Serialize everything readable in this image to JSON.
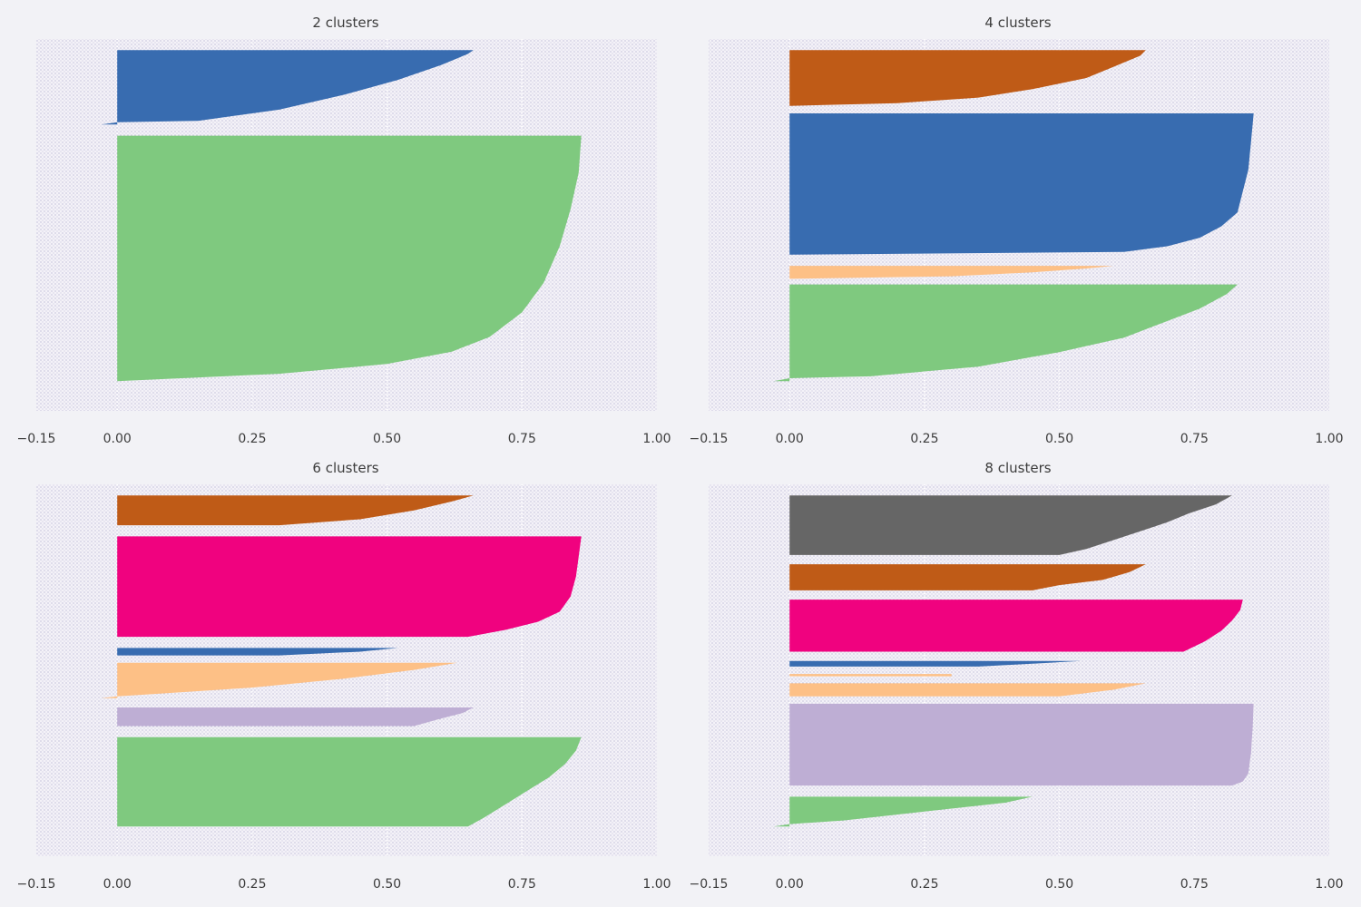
{
  "chart_data": [
    {
      "type": "silhouette",
      "title": "2 clusters",
      "xlim": [
        -0.15,
        1.0
      ],
      "xticks": [
        "−0.15",
        "0.00",
        "0.25",
        "0.50",
        "0.75",
        "1.00"
      ],
      "xtick_values": [
        -0.15,
        0.0,
        0.25,
        0.5,
        0.75,
        1.0
      ],
      "ylim": [
        0,
        100
      ],
      "clusters": [
        {
          "color": "#386cb0",
          "y0": 3,
          "y1": 23,
          "profile": [
            [
              0,
              0.66
            ],
            [
              0.05,
              0.65
            ],
            [
              0.2,
              0.6
            ],
            [
              0.4,
              0.52
            ],
            [
              0.6,
              0.42
            ],
            [
              0.8,
              0.3
            ],
            [
              0.95,
              0.15
            ],
            [
              0.97,
              0.0
            ],
            [
              1,
              -0.03
            ]
          ]
        },
        {
          "color": "#7fc97f",
          "y0": 26,
          "y1": 92,
          "profile": [
            [
              0,
              0.86
            ],
            [
              0.15,
              0.855
            ],
            [
              0.3,
              0.84
            ],
            [
              0.45,
              0.82
            ],
            [
              0.6,
              0.79
            ],
            [
              0.72,
              0.75
            ],
            [
              0.82,
              0.69
            ],
            [
              0.88,
              0.62
            ],
            [
              0.93,
              0.5
            ],
            [
              0.97,
              0.3
            ],
            [
              1,
              0.0
            ]
          ]
        }
      ]
    },
    {
      "type": "silhouette",
      "title": "4 clusters",
      "xlim": [
        -0.15,
        1.0
      ],
      "xticks": [
        "−0.15",
        "0.00",
        "0.25",
        "0.50",
        "0.75",
        "1.00"
      ],
      "xtick_values": [
        -0.15,
        0.0,
        0.25,
        0.5,
        0.75,
        1.0
      ],
      "ylim": [
        0,
        100
      ],
      "clusters": [
        {
          "color": "#bf5b17",
          "y0": 3,
          "y1": 18,
          "profile": [
            [
              0,
              0.66
            ],
            [
              0.1,
              0.65
            ],
            [
              0.3,
              0.6
            ],
            [
              0.5,
              0.55
            ],
            [
              0.7,
              0.45
            ],
            [
              0.85,
              0.35
            ],
            [
              0.95,
              0.2
            ],
            [
              1,
              0.0
            ]
          ]
        },
        {
          "color": "#386cb0",
          "y0": 20,
          "y1": 58,
          "profile": [
            [
              0,
              0.86
            ],
            [
              0.2,
              0.855
            ],
            [
              0.4,
              0.85
            ],
            [
              0.55,
              0.84
            ],
            [
              0.7,
              0.83
            ],
            [
              0.8,
              0.8
            ],
            [
              0.88,
              0.76
            ],
            [
              0.94,
              0.7
            ],
            [
              0.98,
              0.62
            ],
            [
              1,
              0.0
            ]
          ]
        },
        {
          "color": "#fdc086",
          "y0": 61,
          "y1": 64.5,
          "profile": [
            [
              0,
              0.6
            ],
            [
              0.2,
              0.55
            ],
            [
              0.5,
              0.45
            ],
            [
              0.8,
              0.3
            ],
            [
              1,
              0.0
            ]
          ]
        },
        {
          "color": "#7fc97f",
          "y0": 66,
          "y1": 92,
          "profile": [
            [
              0,
              0.83
            ],
            [
              0.1,
              0.81
            ],
            [
              0.25,
              0.76
            ],
            [
              0.4,
              0.69
            ],
            [
              0.55,
              0.62
            ],
            [
              0.7,
              0.5
            ],
            [
              0.85,
              0.35
            ],
            [
              0.95,
              0.15
            ],
            [
              0.97,
              0.0
            ],
            [
              1,
              -0.03
            ]
          ]
        }
      ]
    },
    {
      "type": "silhouette",
      "title": "6 clusters",
      "xlim": [
        -0.15,
        1.0
      ],
      "xticks": [
        "−0.15",
        "0.00",
        "0.25",
        "0.50",
        "0.75",
        "1.00"
      ],
      "xtick_values": [
        -0.15,
        0.0,
        0.25,
        0.5,
        0.75,
        1.0
      ],
      "ylim": [
        0,
        100
      ],
      "clusters": [
        {
          "color": "#bf5b17",
          "y0": 3,
          "y1": 11,
          "profile": [
            [
              0,
              0.66
            ],
            [
              0.2,
              0.62
            ],
            [
              0.5,
              0.55
            ],
            [
              0.8,
              0.45
            ],
            [
              1,
              0.3
            ]
          ]
        },
        {
          "color": "#f0027f",
          "y0": 14,
          "y1": 41,
          "profile": [
            [
              0,
              0.86
            ],
            [
              0.2,
              0.855
            ],
            [
              0.4,
              0.85
            ],
            [
              0.6,
              0.84
            ],
            [
              0.75,
              0.82
            ],
            [
              0.85,
              0.78
            ],
            [
              0.93,
              0.72
            ],
            [
              1,
              0.65
            ]
          ]
        },
        {
          "color": "#386cb0",
          "y0": 44,
          "y1": 46,
          "profile": [
            [
              0,
              0.52
            ],
            [
              0.5,
              0.45
            ],
            [
              1,
              0.3
            ]
          ]
        },
        {
          "color": "#fdc086",
          "y0": 48,
          "y1": 57.5,
          "profile": [
            [
              0,
              0.63
            ],
            [
              0.2,
              0.55
            ],
            [
              0.45,
              0.42
            ],
            [
              0.7,
              0.25
            ],
            [
              0.9,
              0.05
            ],
            [
              0.95,
              0.0
            ],
            [
              1,
              -0.03
            ]
          ]
        },
        {
          "color": "#beaed4",
          "y0": 60,
          "y1": 65,
          "profile": [
            [
              0,
              0.66
            ],
            [
              0.3,
              0.64
            ],
            [
              0.6,
              0.6
            ],
            [
              1,
              0.55
            ]
          ]
        },
        {
          "color": "#7fc97f",
          "y0": 68,
          "y1": 92,
          "profile": [
            [
              0,
              0.86
            ],
            [
              0.15,
              0.85
            ],
            [
              0.3,
              0.83
            ],
            [
              0.45,
              0.8
            ],
            [
              0.6,
              0.76
            ],
            [
              0.75,
              0.72
            ],
            [
              0.9,
              0.68
            ],
            [
              1,
              0.65
            ]
          ]
        }
      ]
    },
    {
      "type": "silhouette",
      "title": "8 clusters",
      "xlim": [
        -0.15,
        1.0
      ],
      "xticks": [
        "−0.15",
        "0.00",
        "0.25",
        "0.50",
        "0.75",
        "1.00"
      ],
      "xtick_values": [
        -0.15,
        0.0,
        0.25,
        0.5,
        0.75,
        1.0
      ],
      "ylim": [
        0,
        100
      ],
      "clusters": [
        {
          "color": "#666666",
          "y0": 3,
          "y1": 19,
          "profile": [
            [
              0,
              0.82
            ],
            [
              0.15,
              0.79
            ],
            [
              0.3,
              0.74
            ],
            [
              0.45,
              0.7
            ],
            [
              0.6,
              0.65
            ],
            [
              0.75,
              0.6
            ],
            [
              0.9,
              0.55
            ],
            [
              1,
              0.5
            ]
          ]
        },
        {
          "color": "#bf5b17",
          "y0": 21.5,
          "y1": 28.5,
          "profile": [
            [
              0,
              0.66
            ],
            [
              0.3,
              0.63
            ],
            [
              0.6,
              0.58
            ],
            [
              0.8,
              0.5
            ],
            [
              1,
              0.45
            ]
          ]
        },
        {
          "color": "#f0027f",
          "y0": 31,
          "y1": 45,
          "profile": [
            [
              0,
              0.84
            ],
            [
              0.2,
              0.835
            ],
            [
              0.4,
              0.82
            ],
            [
              0.6,
              0.8
            ],
            [
              0.8,
              0.77
            ],
            [
              1,
              0.73
            ]
          ]
        },
        {
          "color": "#386cb0",
          "y0": 47.5,
          "y1": 49,
          "profile": [
            [
              0,
              0.54
            ],
            [
              0.5,
              0.45
            ],
            [
              1,
              0.35
            ]
          ]
        },
        {
          "color": "#fdc086",
          "y0": 51,
          "y1": 51.6,
          "profile": [
            [
              0,
              0.3
            ],
            [
              1,
              0.3
            ]
          ]
        },
        {
          "color": "#fdc086",
          "y0": 53.5,
          "y1": 57,
          "profile": [
            [
              0,
              0.66
            ],
            [
              0.5,
              0.6
            ],
            [
              1,
              0.5
            ]
          ]
        },
        {
          "color": "#beaed4",
          "y0": 59,
          "y1": 81,
          "profile": [
            [
              0,
              0.86
            ],
            [
              0.3,
              0.858
            ],
            [
              0.6,
              0.855
            ],
            [
              0.85,
              0.85
            ],
            [
              0.95,
              0.84
            ],
            [
              1,
              0.82
            ]
          ]
        },
        {
          "color": "#7fc97f",
          "y0": 84,
          "y1": 92,
          "profile": [
            [
              0,
              0.45
            ],
            [
              0.2,
              0.4
            ],
            [
              0.5,
              0.25
            ],
            [
              0.8,
              0.1
            ],
            [
              0.92,
              0.0
            ],
            [
              1,
              -0.03
            ]
          ]
        }
      ]
    }
  ]
}
